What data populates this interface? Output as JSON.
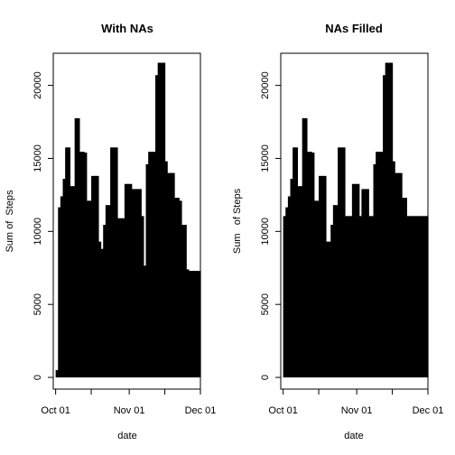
{
  "chart_data": [
    {
      "type": "bar",
      "title": "With NAs",
      "xlabel": "date",
      "ylabel": "Sum of  Steps",
      "x_tick_labels": [
        "Oct 01",
        "Nov 01",
        "Dec 01"
      ],
      "x_ticks": [
        "2012-10-01",
        "2012-10-16",
        "2012-11-01",
        "2012-11-16",
        "2012-12-01"
      ],
      "xlim": [
        "2012-09-30",
        "2012-12-01"
      ],
      "y_ticks": [
        0,
        5000,
        10000,
        15000,
        20000
      ],
      "ylim": [
        -800,
        22200
      ],
      "grid": false,
      "legend": false,
      "color": "#000000",
      "categories": [
        "2012-10-01",
        "2012-10-02",
        "2012-10-03",
        "2012-10-04",
        "2012-10-05",
        "2012-10-06",
        "2012-10-07",
        "2012-10-08",
        "2012-10-09",
        "2012-10-10",
        "2012-10-11",
        "2012-10-12",
        "2012-10-13",
        "2012-10-14",
        "2012-10-15",
        "2012-10-16",
        "2012-10-17",
        "2012-10-18",
        "2012-10-19",
        "2012-10-20",
        "2012-10-21",
        "2012-10-22",
        "2012-10-23",
        "2012-10-24",
        "2012-10-25",
        "2012-10-26",
        "2012-10-27",
        "2012-10-28",
        "2012-10-29",
        "2012-10-30",
        "2012-10-31",
        "2012-11-01",
        "2012-11-02",
        "2012-11-03",
        "2012-11-04",
        "2012-11-05",
        "2012-11-06",
        "2012-11-07",
        "2012-11-08",
        "2012-11-09",
        "2012-11-10",
        "2012-11-11",
        "2012-11-12",
        "2012-11-13",
        "2012-11-14",
        "2012-11-15",
        "2012-11-16",
        "2012-11-17",
        "2012-11-18",
        "2012-11-19",
        "2012-11-20",
        "2012-11-21",
        "2012-11-22",
        "2012-11-23",
        "2012-11-24",
        "2012-11-25",
        "2012-11-26",
        "2012-11-27",
        "2012-11-28",
        "2012-11-29",
        "2012-11-30"
      ],
      "values": [
        500,
        11650,
        12400,
        13600,
        15750,
        15750,
        13100,
        13100,
        17750,
        17750,
        15450,
        15450,
        15400,
        12100,
        12100,
        13800,
        13800,
        13800,
        9300,
        8800,
        10450,
        11800,
        11800,
        15750,
        15750,
        15750,
        10900,
        10900,
        10900,
        13250,
        13250,
        13250,
        12900,
        12900,
        12900,
        12900,
        11050,
        7650,
        14600,
        15450,
        15450,
        15450,
        20700,
        21550,
        21550,
        21550,
        14800,
        14000,
        14000,
        14000,
        12300,
        12300,
        12100,
        10450,
        10450,
        7400,
        7300,
        7300,
        7300,
        7300,
        7300
      ]
    },
    {
      "type": "bar",
      "title": "NAs Filled",
      "xlabel": "date",
      "ylabel": "Sum   of Steps",
      "x_tick_labels": [
        "Oct 01",
        "Nov 01",
        "Dec 01"
      ],
      "x_ticks": [
        "2012-10-01",
        "2012-10-16",
        "2012-11-01",
        "2012-11-16",
        "2012-12-01"
      ],
      "xlim": [
        "2012-09-30",
        "2012-12-01"
      ],
      "y_ticks": [
        0,
        5000,
        10000,
        15000,
        20000
      ],
      "ylim": [
        -800,
        22200
      ],
      "grid": false,
      "legend": false,
      "color": "#000000",
      "categories": [
        "2012-10-01",
        "2012-10-02",
        "2012-10-03",
        "2012-10-04",
        "2012-10-05",
        "2012-10-06",
        "2012-10-07",
        "2012-10-08",
        "2012-10-09",
        "2012-10-10",
        "2012-10-11",
        "2012-10-12",
        "2012-10-13",
        "2012-10-14",
        "2012-10-15",
        "2012-10-16",
        "2012-10-17",
        "2012-10-18",
        "2012-10-19",
        "2012-10-20",
        "2012-10-21",
        "2012-10-22",
        "2012-10-23",
        "2012-10-24",
        "2012-10-25",
        "2012-10-26",
        "2012-10-27",
        "2012-10-28",
        "2012-10-29",
        "2012-10-30",
        "2012-10-31",
        "2012-11-01",
        "2012-11-02",
        "2012-11-03",
        "2012-11-04",
        "2012-11-05",
        "2012-11-06",
        "2012-11-07",
        "2012-11-08",
        "2012-11-09",
        "2012-11-10",
        "2012-11-11",
        "2012-11-12",
        "2012-11-13",
        "2012-11-14",
        "2012-11-15",
        "2012-11-16",
        "2012-11-17",
        "2012-11-18",
        "2012-11-19",
        "2012-11-20",
        "2012-11-21",
        "2012-11-22",
        "2012-11-23",
        "2012-11-24",
        "2012-11-25",
        "2012-11-26",
        "2012-11-27",
        "2012-11-28",
        "2012-11-29",
        "2012-11-30"
      ],
      "values": [
        11050,
        11650,
        12400,
        13600,
        15750,
        15750,
        13100,
        13100,
        17750,
        17750,
        15450,
        15450,
        15400,
        12100,
        12100,
        13800,
        13800,
        13800,
        9300,
        9300,
        10450,
        11800,
        11800,
        15750,
        15750,
        15750,
        11050,
        11050,
        11050,
        13250,
        13250,
        13250,
        11050,
        12900,
        12900,
        12900,
        11050,
        11050,
        14600,
        15450,
        15450,
        15450,
        20700,
        21550,
        21550,
        21550,
        14800,
        14000,
        14000,
        14000,
        12300,
        12300,
        11050,
        11050,
        11050,
        11050,
        11050,
        11050,
        11050,
        11050,
        11050
      ]
    }
  ]
}
